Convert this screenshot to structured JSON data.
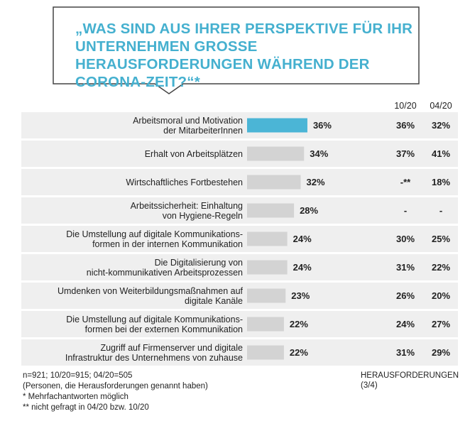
{
  "chart_data": {
    "type": "bar",
    "orientation": "horizontal",
    "title": "„WAS SIND AUS IHRER PERSPEKTIVE FÜR IHR UNTERNEHMEN GROSSE HERAUSFORDERUNGEN WÄHREND DER CORONA-ZEIT?“*",
    "title_color": "#45b0cf",
    "categories": [
      "Arbeitsmoral und Motivation\nder MitarbeiterInnen",
      "Erhalt von Arbeitsplätzen",
      "Wirtschaftliches Fortbestehen",
      "Arbeitssicherheit: Einhaltung\nvon Hygiene-Regeln",
      "Die Umstellung auf digitale Kommunikations-\nformen in der internen Kommunikation",
      "Die Digitalisierung von\nnicht-kommunikativen Arbeitsprozessen",
      "Umdenken von Weiterbildungsmaßnahmen auf\ndigitale Kanäle",
      "Die Umstellung auf digitale Kommunikations-\nformen bei der externen Kommunikation",
      "Zugriff auf Firmenserver und digitale\nInfrastruktur des Unternehmens von zuhause"
    ],
    "values": [
      36,
      34,
      32,
      28,
      24,
      24,
      23,
      22,
      22
    ],
    "value_labels": [
      "36%",
      "34%",
      "32%",
      "28%",
      "24%",
      "24%",
      "23%",
      "22%",
      "22%"
    ],
    "colors": [
      "#4bb5d6",
      "#d3d3d3",
      "#d3d3d3",
      "#d3d3d3",
      "#d3d3d3",
      "#d3d3d3",
      "#d3d3d3",
      "#d3d3d3",
      "#d3d3d3"
    ],
    "columns": [
      {
        "name": "10/20",
        "values": [
          36,
          37,
          null,
          null,
          30,
          31,
          26,
          24,
          31
        ],
        "value_labels": [
          "36%",
          "37%",
          "-**",
          "-",
          "30%",
          "31%",
          "26%",
          "24%",
          "31%"
        ]
      },
      {
        "name": "04/20",
        "values": [
          32,
          41,
          18,
          null,
          25,
          22,
          20,
          27,
          29
        ],
        "value_labels": [
          "32%",
          "41%",
          "18%",
          "-",
          "25%",
          "22%",
          "20%",
          "27%",
          "29%"
        ]
      }
    ],
    "notes": [
      "n=921; 10/20=915; 04/20=505",
      "(Personen, die Herausforderungen genannt haben)",
      "* Mehrfachantworten möglich",
      "** nicht gefragt in 04/20 bzw. 10/20"
    ],
    "footer_right": "HERAUSFORDERUNGEN (3/4)"
  }
}
